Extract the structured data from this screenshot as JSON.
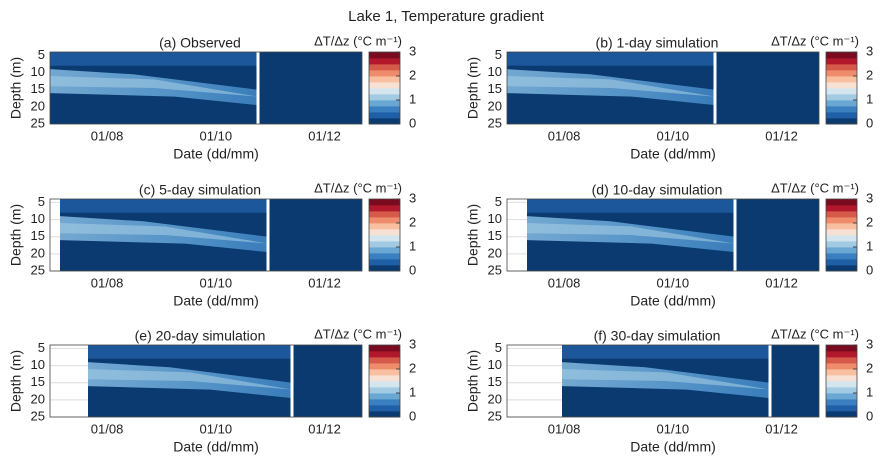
{
  "chart_data": {
    "title": "Lake 1, Temperature gradient",
    "panels": [
      {
        "type": "heatmap",
        "title": "(a) Observed",
        "xlabel": "Date (dd/mm)",
        "ylabel": "Depth (m)",
        "xlim": [
          "30/06",
          "22/12"
        ],
        "xticks": [
          "01/08",
          "01/10",
          "01/12"
        ],
        "ylim": [
          4,
          25
        ],
        "yticks": [
          5,
          10,
          15,
          20,
          25
        ],
        "grid": true,
        "colorbar_label": "ΔT/Δz (°C m⁻¹)",
        "clim": [
          0,
          3
        ],
        "cticks": [
          0,
          1,
          2,
          3
        ],
        "colors": [
          "#0a3a70",
          "#1f5fa5",
          "#3a7fbf",
          "#6aa7d3",
          "#a2cbe3",
          "#d3e6f0",
          "#f6e1d4",
          "#f8c0a0",
          "#ee8c6b",
          "#d65a4a",
          "#b2182b",
          "#7a0a1f"
        ]
      },
      {
        "type": "heatmap",
        "title": "(b) 1-day simulation",
        "xlabel": "Date (dd/mm)",
        "ylabel": "Depth (m)",
        "xlim": [
          "30/06",
          "22/12"
        ],
        "xticks": [
          "01/08",
          "01/10",
          "01/12"
        ],
        "ylim": [
          4,
          25
        ],
        "yticks": [
          5,
          10,
          15,
          20,
          25
        ],
        "grid": true,
        "colorbar_label": "ΔT/Δz (°C m⁻¹)",
        "clim": [
          0,
          3
        ],
        "cticks": [
          0,
          1,
          2,
          3
        ],
        "colors": [
          "#0a3a70",
          "#1f5fa5",
          "#3a7fbf",
          "#6aa7d3",
          "#a2cbe3",
          "#d3e6f0",
          "#f6e1d4",
          "#f8c0a0",
          "#ee8c6b",
          "#d65a4a",
          "#b2182b",
          "#7a0a1f"
        ]
      },
      {
        "type": "heatmap",
        "title": "(c) 5-day simulation",
        "xlabel": "Date (dd/mm)",
        "ylabel": "Depth (m)",
        "xlim": [
          "30/06",
          "22/12"
        ],
        "xticks": [
          "01/08",
          "01/10",
          "01/12"
        ],
        "ylim": [
          4,
          25
        ],
        "yticks": [
          5,
          10,
          15,
          20,
          25
        ],
        "grid": true,
        "colorbar_label": "ΔT/Δz (°C m⁻¹)",
        "clim": [
          0,
          3
        ],
        "cticks": [
          0,
          1,
          2,
          3
        ],
        "colors": [
          "#0a3a70",
          "#1f5fa5",
          "#3a7fbf",
          "#6aa7d3",
          "#a2cbe3",
          "#d3e6f0",
          "#f6e1d4",
          "#f8c0a0",
          "#ee8c6b",
          "#d65a4a",
          "#b2182b",
          "#7a0a1f"
        ]
      },
      {
        "type": "heatmap",
        "title": "(d) 10-day simulation",
        "xlabel": "Date (dd/mm)",
        "ylabel": "Depth (m)",
        "xlim": [
          "30/06",
          "22/12"
        ],
        "xticks": [
          "01/08",
          "01/10",
          "01/12"
        ],
        "ylim": [
          4,
          25
        ],
        "yticks": [
          5,
          10,
          15,
          20,
          25
        ],
        "grid": true,
        "colorbar_label": "ΔT/Δz (°C m⁻¹)",
        "clim": [
          0,
          3
        ],
        "cticks": [
          0,
          1,
          2,
          3
        ],
        "colors": [
          "#0a3a70",
          "#1f5fa5",
          "#3a7fbf",
          "#6aa7d3",
          "#a2cbe3",
          "#d3e6f0",
          "#f6e1d4",
          "#f8c0a0",
          "#ee8c6b",
          "#d65a4a",
          "#b2182b",
          "#7a0a1f"
        ]
      },
      {
        "type": "heatmap",
        "title": "(e) 20-day simulation",
        "xlabel": "Date (dd/mm)",
        "ylabel": "Depth (m)",
        "xlim": [
          "30/06",
          "22/12"
        ],
        "xticks": [
          "01/08",
          "01/10",
          "01/12"
        ],
        "ylim": [
          4,
          25
        ],
        "yticks": [
          5,
          10,
          15,
          20,
          25
        ],
        "grid": true,
        "colorbar_label": "ΔT/Δz (°C m⁻¹)",
        "clim": [
          0,
          3
        ],
        "cticks": [
          0,
          1,
          2,
          3
        ],
        "colors": [
          "#0a3a70",
          "#1f5fa5",
          "#3a7fbf",
          "#6aa7d3",
          "#a2cbe3",
          "#d3e6f0",
          "#f6e1d4",
          "#f8c0a0",
          "#ee8c6b",
          "#d65a4a",
          "#b2182b",
          "#7a0a1f"
        ]
      },
      {
        "type": "heatmap",
        "title": "(f) 30-day simulation",
        "xlabel": "Date (dd/mm)",
        "ylabel": "Depth (m)",
        "xlim": [
          "30/06",
          "22/12"
        ],
        "xticks": [
          "01/08",
          "01/10",
          "01/12"
        ],
        "ylim": [
          4,
          25
        ],
        "yticks": [
          5,
          10,
          15,
          20,
          25
        ],
        "grid": true,
        "colorbar_label": "ΔT/Δz (°C m⁻¹)",
        "clim": [
          0,
          3
        ],
        "cticks": [
          0,
          1,
          2,
          3
        ],
        "colors": [
          "#0a3a70",
          "#1f5fa5",
          "#3a7fbf",
          "#6aa7d3",
          "#a2cbe3",
          "#d3e6f0",
          "#f6e1d4",
          "#f8c0a0",
          "#ee8c6b",
          "#d65a4a",
          "#b2182b",
          "#7a0a1f"
        ]
      }
    ]
  }
}
